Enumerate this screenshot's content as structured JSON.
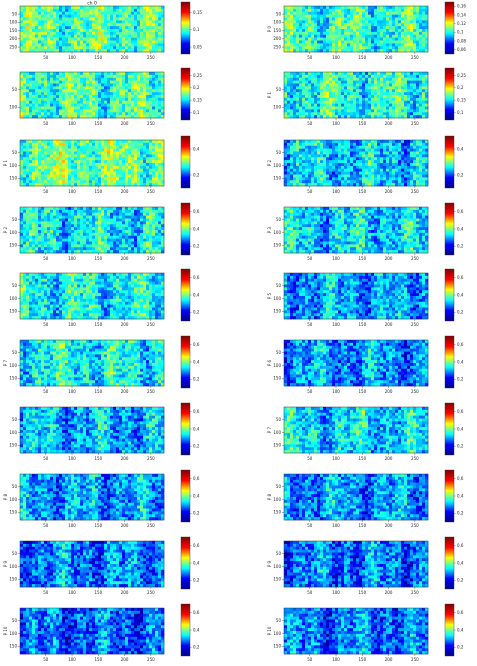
{
  "chart_data": {
    "type": "heatmap",
    "colormap": [
      "#00008f",
      "#0000ff",
      "#00ffff",
      "#ffff00",
      "#ff0000",
      "#800000"
    ],
    "x_ticks": [
      "50",
      "100",
      "150",
      "200",
      "250"
    ],
    "x_range": [
      1,
      275
    ],
    "y_ticks": [
      "50",
      "100",
      "150"
    ],
    "y_range": [
      1,
      180
    ],
    "panels": [
      {
        "title": "ch 0",
        "side_label": "",
        "colorbar_ticks": [
          "0,15",
          "0,1",
          "0,05"
        ],
        "vmin": 0.03,
        "vmax": 0.18,
        "y_range": [
          1,
          280
        ],
        "y_ticks": [
          "50",
          "100",
          "150",
          "200",
          "250"
        ],
        "mean_level": 0.45
      },
      {
        "title": "",
        "side_label": "P 0",
        "colorbar_ticks": [
          "0,16",
          "0,14",
          "0,12",
          "0,1",
          "0,08",
          "0,06"
        ],
        "vmin": 0.05,
        "vmax": 0.17,
        "y_range": [
          1,
          280
        ],
        "y_ticks": [
          "50",
          "100",
          "150",
          "200",
          "250"
        ],
        "mean_level": 0.42
      },
      {
        "title": "",
        "side_label": "",
        "colorbar_ticks": [
          "0,25",
          "0,2",
          "0,15",
          "0,1"
        ],
        "vmin": 0.07,
        "vmax": 0.28,
        "y_range": [
          1,
          130
        ],
        "y_ticks": [
          "50",
          "100"
        ],
        "mean_level": 0.44
      },
      {
        "title": "",
        "side_label": "P 1",
        "colorbar_ticks": [
          "0,25",
          "0,2",
          "0,15",
          "0,1"
        ],
        "vmin": 0.07,
        "vmax": 0.28,
        "y_range": [
          1,
          130
        ],
        "y_ticks": [
          "50",
          "100"
        ],
        "mean_level": 0.4
      },
      {
        "title": "",
        "side_label": "P 1",
        "colorbar_ticks": [
          "0,4",
          "0,2"
        ],
        "vmin": 0.1,
        "vmax": 0.5,
        "mean_level": 0.48
      },
      {
        "title": "",
        "side_label": "P 2",
        "colorbar_ticks": [
          "0,4",
          "0,2"
        ],
        "vmin": 0.1,
        "vmax": 0.5,
        "mean_level": 0.33
      },
      {
        "title": "",
        "side_label": "P 2",
        "colorbar_ticks": [
          "0,6",
          "0,4",
          "0,2"
        ],
        "vmin": 0.1,
        "vmax": 0.7,
        "mean_level": 0.36
      },
      {
        "title": "",
        "side_label": "P 3",
        "colorbar_ticks": [
          "0,6",
          "0,4",
          "0,2"
        ],
        "vmin": 0.1,
        "vmax": 0.7,
        "mean_level": 0.34
      },
      {
        "title": "",
        "side_label": "",
        "colorbar_ticks": [
          "0,6",
          "0,4",
          "0,2"
        ],
        "vmin": 0.1,
        "vmax": 0.7,
        "mean_level": 0.38
      },
      {
        "title": "",
        "side_label": "P 5",
        "colorbar_ticks": [
          "0,6",
          "0,4",
          "0,2"
        ],
        "vmin": 0.1,
        "vmax": 0.7,
        "mean_level": 0.28
      },
      {
        "title": "",
        "side_label": "P 7",
        "colorbar_ticks": [
          "0,6",
          "0,4",
          "0,2"
        ],
        "vmin": 0.1,
        "vmax": 0.7,
        "mean_level": 0.38
      },
      {
        "title": "",
        "side_label": "P 6",
        "colorbar_ticks": [
          "0,6",
          "0,4",
          "0,2"
        ],
        "vmin": 0.1,
        "vmax": 0.7,
        "mean_level": 0.27
      },
      {
        "title": "",
        "side_label": "",
        "colorbar_ticks": [
          "0,6",
          "0,4",
          "0,2"
        ],
        "vmin": 0.1,
        "vmax": 0.7,
        "mean_level": 0.3
      },
      {
        "title": "",
        "side_label": "P 7",
        "colorbar_ticks": [
          "0,6",
          "0,4",
          "0,2"
        ],
        "vmin": 0.1,
        "vmax": 0.7,
        "mean_level": 0.34
      },
      {
        "title": "",
        "side_label": "P 8",
        "colorbar_ticks": [
          "0,6",
          "0,4",
          "0,2"
        ],
        "vmin": 0.1,
        "vmax": 0.7,
        "mean_level": 0.28
      },
      {
        "title": "",
        "side_label": "P 8",
        "colorbar_ticks": [
          "0,6",
          "0,4",
          "0,2"
        ],
        "vmin": 0.1,
        "vmax": 0.7,
        "mean_level": 0.27
      },
      {
        "title": "",
        "side_label": "P 9",
        "colorbar_ticks": [
          "0,6",
          "0,4",
          "0,2"
        ],
        "vmin": 0.1,
        "vmax": 0.7,
        "mean_level": 0.25
      },
      {
        "title": "",
        "side_label": "P 9",
        "colorbar_ticks": [
          "0,6",
          "0,4",
          "0,2"
        ],
        "vmin": 0.1,
        "vmax": 0.7,
        "mean_level": 0.24
      },
      {
        "title": "",
        "side_label": "P 10",
        "colorbar_ticks": [
          "0,6",
          "0,4",
          "0,2"
        ],
        "vmin": 0.1,
        "vmax": 0.7,
        "mean_level": 0.22
      },
      {
        "title": "",
        "side_label": "P 10",
        "colorbar_ticks": [
          "0,6",
          "0,4",
          "0,2"
        ],
        "vmin": 0.1,
        "vmax": 0.7,
        "mean_level": 0.24
      }
    ]
  }
}
